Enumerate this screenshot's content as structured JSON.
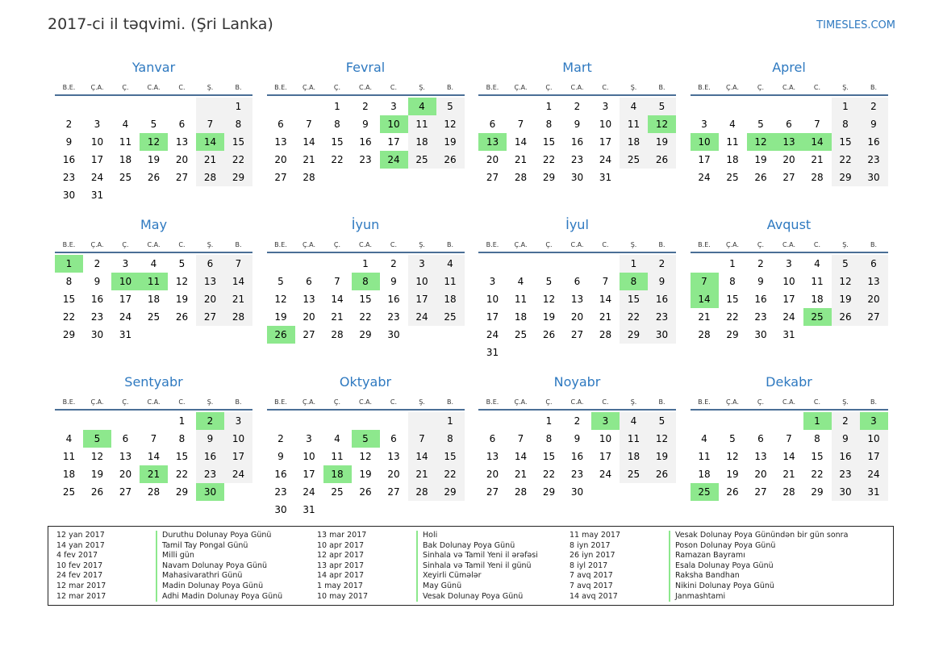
{
  "title": "2017-ci il təqvimi. (Şri Lanka)",
  "site": "TIMESLES.COM",
  "day_headers": [
    "B.E.",
    "Ç.A.",
    "Ç.",
    "C.A.",
    "C.",
    "Ş.",
    "B."
  ],
  "months": [
    {
      "name": "Yanvar",
      "start": 6,
      "days": 31,
      "holidays": [
        12,
        14
      ]
    },
    {
      "name": "Fevral",
      "start": 2,
      "days": 28,
      "holidays": [
        4,
        10,
        24
      ]
    },
    {
      "name": "Mart",
      "start": 2,
      "days": 31,
      "holidays": [
        12,
        13
      ]
    },
    {
      "name": "Aprel",
      "start": 5,
      "days": 30,
      "holidays": [
        10,
        12,
        13,
        14
      ]
    },
    {
      "name": "May",
      "start": 0,
      "days": 31,
      "holidays": [
        1,
        10,
        11
      ]
    },
    {
      "name": "İyun",
      "start": 3,
      "days": 30,
      "holidays": [
        8,
        26
      ]
    },
    {
      "name": "İyul",
      "start": 5,
      "days": 31,
      "holidays": [
        8
      ]
    },
    {
      "name": "Avqust",
      "start": 1,
      "days": 31,
      "holidays": [
        7,
        14,
        25
      ]
    },
    {
      "name": "Sentyabr",
      "start": 4,
      "days": 30,
      "holidays": [
        2,
        5,
        21,
        30
      ]
    },
    {
      "name": "Oktyabr",
      "start": 6,
      "days": 31,
      "holidays": [
        5,
        18
      ]
    },
    {
      "name": "Noyabr",
      "start": 2,
      "days": 30,
      "holidays": [
        3
      ]
    },
    {
      "name": "Dekabr",
      "start": 4,
      "days": 31,
      "holidays": [
        1,
        3,
        25
      ]
    }
  ],
  "legend": [
    [
      {
        "date": "12 yan 2017",
        "name": "Duruthu Dolunay Poya Günü"
      },
      {
        "date": "14 yan 2017",
        "name": "Tamil Tay Pongal Günü"
      },
      {
        "date": "4 fev 2017",
        "name": "Milli gün"
      },
      {
        "date": "10 fev 2017",
        "name": "Navam Dolunay Poya Günü"
      },
      {
        "date": "24 fev 2017",
        "name": "Mahasivarathri Günü"
      },
      {
        "date": "12 mar 2017",
        "name": "Madin Dolunay Poya Günü"
      },
      {
        "date": "12 mar 2017",
        "name": "Adhi Madin Dolunay Poya Günü"
      }
    ],
    [
      {
        "date": "13 mar 2017",
        "name": "Holi"
      },
      {
        "date": "10 apr 2017",
        "name": "Bak Dolunay Poya Günü"
      },
      {
        "date": "12 apr 2017",
        "name": "Sinhala və Tamil Yeni il ərəfəsi"
      },
      {
        "date": "13 apr 2017",
        "name": "Sinhala və Tamil Yeni il günü"
      },
      {
        "date": "14 apr 2017",
        "name": "Xeyirli Cümələr"
      },
      {
        "date": "1 may 2017",
        "name": "May Günü"
      },
      {
        "date": "10 may 2017",
        "name": "Vesak Dolunay Poya Günü"
      }
    ],
    [
      {
        "date": "11 may 2017",
        "name": "Vesak Dolunay Poya Günündən bir gün sonra"
      },
      {
        "date": "8 iyn 2017",
        "name": "Poson Dolunay Poya Günü"
      },
      {
        "date": "26 iyn 2017",
        "name": "Ramazan Bayramı"
      },
      {
        "date": "8 iyl 2017",
        "name": "Esala Dolunay Poya Günü"
      },
      {
        "date": "7 avq 2017",
        "name": "Raksha Bandhan"
      },
      {
        "date": "7 avq 2017",
        "name": "Nikini Dolunay Poya Günü"
      },
      {
        "date": "14 avq 2017",
        "name": "Janmashtami"
      }
    ]
  ]
}
